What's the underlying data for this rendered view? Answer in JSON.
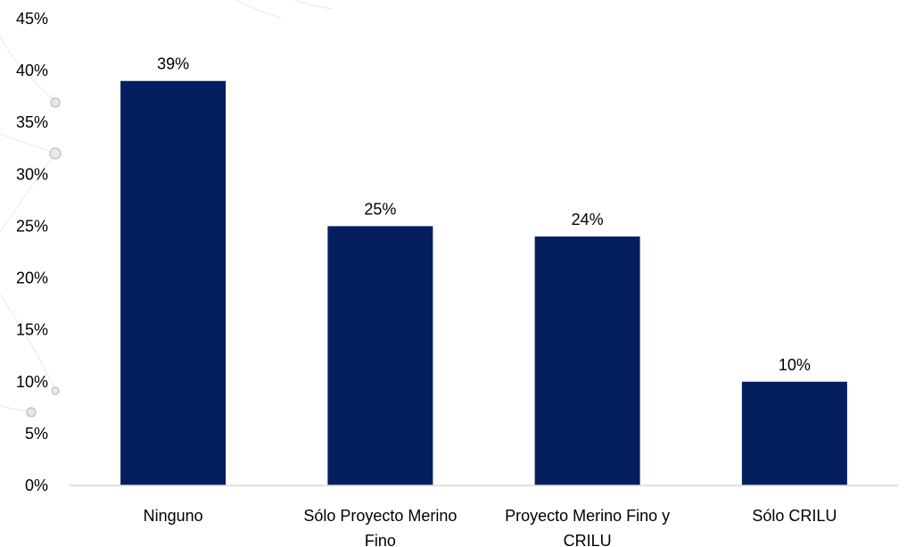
{
  "chart_data": {
    "type": "bar",
    "categories": [
      "Ninguno",
      "Sólo Proyecto Merino Fino",
      "Proyecto Merino Fino y CRILU",
      "Sólo CRILU"
    ],
    "category_lines": [
      [
        "Ninguno"
      ],
      [
        "Sólo Proyecto Merino",
        "Fino"
      ],
      [
        "Proyecto Merino Fino y",
        "CRILU"
      ],
      [
        "Sólo CRILU"
      ]
    ],
    "values": [
      39,
      25,
      24,
      10
    ],
    "data_labels": [
      "39%",
      "25%",
      "24%",
      "10%"
    ],
    "ylim": [
      0,
      45
    ],
    "yticks": [
      0,
      5,
      10,
      15,
      20,
      25,
      30,
      35,
      40,
      45
    ],
    "ytick_labels": [
      "0%",
      "5%",
      "10%",
      "15%",
      "20%",
      "25%",
      "30%",
      "35%",
      "40%",
      "45%"
    ],
    "title": "",
    "xlabel": "",
    "ylabel": "",
    "grid": false,
    "legend": "none",
    "bar_color": "#041e5e",
    "axis_color": "#d9d9d9"
  }
}
